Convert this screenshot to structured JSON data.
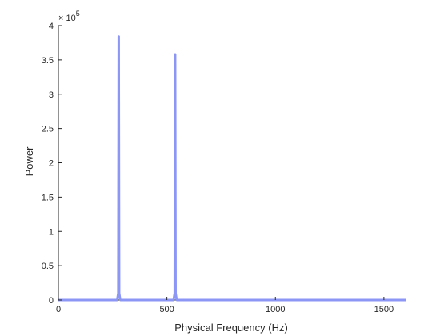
{
  "chart_data": {
    "type": "line",
    "title": "",
    "xlabel": "Physical Frequency (Hz)",
    "ylabel": "Power",
    "xlim": [
      0,
      1600
    ],
    "ylim": [
      0,
      4
    ],
    "y_multiplier_label": "× 10",
    "y_multiplier_exponent": "5",
    "x_ticks": [
      0,
      500,
      1000,
      1500
    ],
    "x_tick_labels": [
      "0",
      "500",
      "1000",
      "1500"
    ],
    "y_ticks": [
      0,
      0.5,
      1,
      1.5,
      2,
      2.5,
      3,
      3.5,
      4
    ],
    "y_tick_labels": [
      "0",
      "0.5",
      "1",
      "1.5",
      "2",
      "2.5",
      "3",
      "3.5",
      "4"
    ],
    "grid": false,
    "series": [
      {
        "color": "#8c96f5",
        "x": [
          0,
          270,
          272,
          276,
          278,
          280,
          284,
          286,
          530,
          532,
          536,
          538,
          540,
          544,
          546,
          1600
        ],
        "y": [
          0,
          0,
          0.02,
          0.1,
          3.84,
          0.1,
          0.02,
          0,
          0,
          0.02,
          0.1,
          3.58,
          0.1,
          0.02,
          0,
          0
        ]
      }
    ]
  }
}
